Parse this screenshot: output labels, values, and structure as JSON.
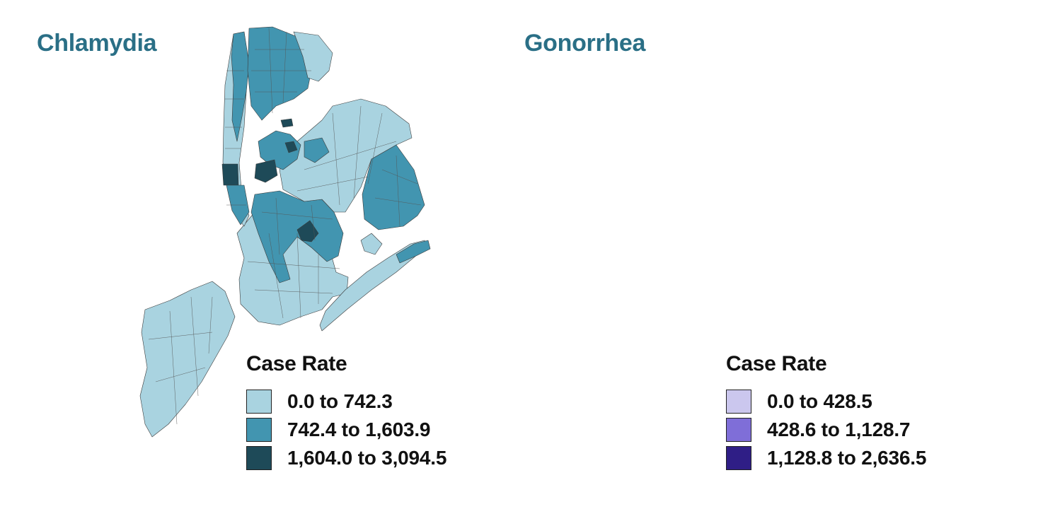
{
  "maps": [
    {
      "title": "Chlamydia",
      "title_color": "#2a6f86",
      "legend": {
        "title": "Case Rate",
        "items": [
          {
            "label": "0.0 to 742.3",
            "color": "#a9d3e0"
          },
          {
            "label": "742.4 to 1,603.9",
            "color": "#4295b0"
          },
          {
            "label": "1,604.0 to 3,094.5",
            "color": "#1e4a58"
          }
        ]
      }
    },
    {
      "title": "Gonorrhea",
      "title_color": "#2a6f86",
      "legend": {
        "title": "Case Rate",
        "items": [
          {
            "label": "0.0 to 428.5",
            "color": "#cbc7ee"
          },
          {
            "label": "428.6 to 1,128.7",
            "color": "#7f6ed8"
          },
          {
            "label": "1,128.8 to 2,636.5",
            "color": "#2f1e86"
          }
        ]
      }
    }
  ]
}
